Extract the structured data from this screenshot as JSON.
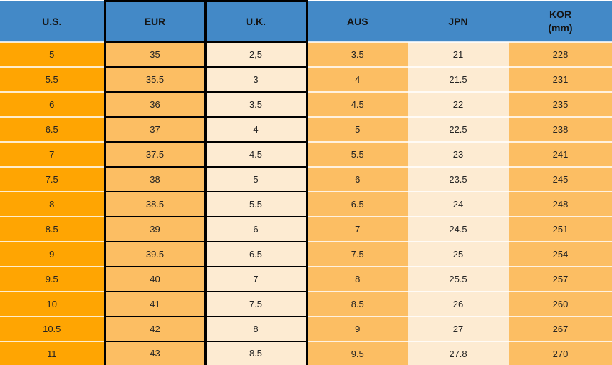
{
  "table": {
    "columns": [
      {
        "label": "U.S.",
        "bg": "#FFA502",
        "highlighted": false
      },
      {
        "label": "EUR",
        "bg": "#FCBE63",
        "highlighted": true
      },
      {
        "label": "U.K.",
        "bg": "#FDEBD2",
        "highlighted": true
      },
      {
        "label": "AUS",
        "bg": "#FCBE63",
        "highlighted": false
      },
      {
        "label": "JPN",
        "bg": "#FDEBD2",
        "highlighted": false
      },
      {
        "label": "KOR",
        "sublabel": "(mm)",
        "bg": "#FCBE63",
        "highlighted": false
      }
    ]
  },
  "chart_data": {
    "type": "table",
    "columns": [
      "U.S.",
      "EUR",
      "U.K.",
      "AUS",
      "JPN",
      "KOR (mm)"
    ],
    "rows": [
      [
        "5",
        "35",
        "2,5",
        "3.5",
        "21",
        "228"
      ],
      [
        "5.5",
        "35.5",
        "3",
        "4",
        "21.5",
        "231"
      ],
      [
        "6",
        "36",
        "3.5",
        "4.5",
        "22",
        "235"
      ],
      [
        "6.5",
        "37",
        "4",
        "5",
        "22.5",
        "238"
      ],
      [
        "7",
        "37.5",
        "4.5",
        "5.5",
        "23",
        "241"
      ],
      [
        "7.5",
        "38",
        "5",
        "6",
        "23.5",
        "245"
      ],
      [
        "8",
        "38.5",
        "5.5",
        "6.5",
        "24",
        "248"
      ],
      [
        "8.5",
        "39",
        "6",
        "7",
        "24.5",
        "251"
      ],
      [
        "9",
        "39.5",
        "6.5",
        "7.5",
        "25",
        "254"
      ],
      [
        "9.5",
        "40",
        "7",
        "8",
        "25.5",
        "257"
      ],
      [
        "10",
        "41",
        "7.5",
        "8.5",
        "26",
        "260"
      ],
      [
        "10.5",
        "42",
        "8",
        "9",
        "27",
        "267"
      ],
      [
        "11",
        "43",
        "8.5",
        "9.5",
        "27.8",
        "270"
      ]
    ]
  },
  "colors": {
    "header_bg": "#4389C7",
    "us_column_bg": "#FFA502",
    "orange_column_bg": "#FCBE63",
    "cream_column_bg": "#FDEBD2",
    "highlight_border": "#000000",
    "header_text": "#151515",
    "cell_text": "#242424"
  }
}
